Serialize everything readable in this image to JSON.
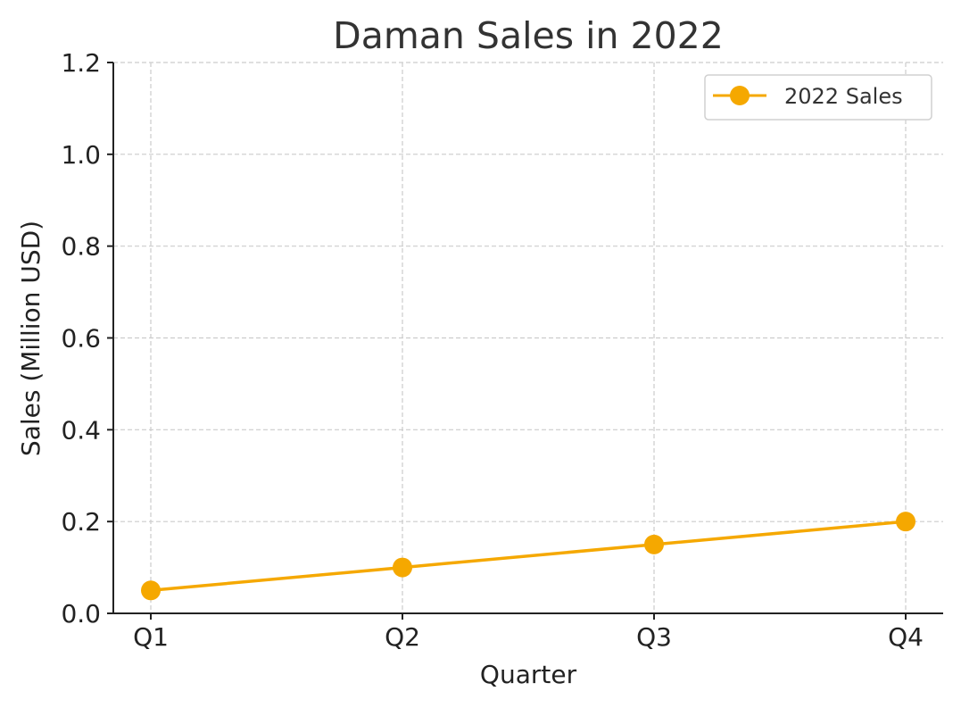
{
  "chart_data": {
    "type": "line",
    "title": "Daman Sales in 2022",
    "xlabel": "Quarter",
    "ylabel": "Sales (Million USD)",
    "categories": [
      "Q1",
      "Q2",
      "Q3",
      "Q4"
    ],
    "series": [
      {
        "name": "2022 Sales",
        "values": [
          0.05,
          0.1,
          0.15,
          0.2
        ],
        "color": "#F5A800",
        "marker": "circle"
      }
    ],
    "ylim": [
      0.0,
      1.2
    ],
    "yticks": [
      "0.0",
      "0.2",
      "0.4",
      "0.6",
      "0.8",
      "1.0",
      "1.2"
    ],
    "ytick_values": [
      0.0,
      0.2,
      0.4,
      0.6,
      0.8,
      1.0,
      1.2
    ],
    "grid": true,
    "legend_position": "top-right"
  }
}
